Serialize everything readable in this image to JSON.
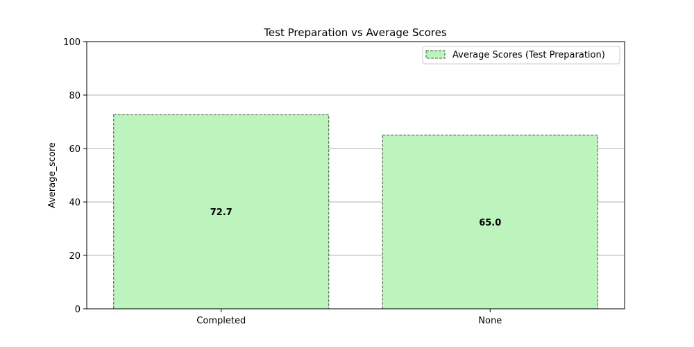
{
  "chart_data": {
    "type": "bar",
    "title": "Test Preparation vs Average Scores",
    "xlabel": "",
    "ylabel": "Average_score",
    "categories": [
      "Completed",
      "None"
    ],
    "series": [
      {
        "name": "Average Scores (Test Preparation)",
        "values": [
          72.7,
          65.0
        ],
        "value_labels": [
          "72.7",
          "65.0"
        ]
      }
    ],
    "ylim": [
      0,
      100
    ],
    "yticks": [
      0,
      20,
      40,
      60,
      80,
      100
    ],
    "ytick_labels": [
      "0",
      "20",
      "40",
      "60",
      "80",
      "100"
    ],
    "grid": "y-axis horizontal lines",
    "legend_position": "top-right",
    "colors": {
      "bar_fill": "#bdf3bd",
      "bar_edge": "#3a5a3a",
      "grid": "#b0b0b0",
      "axes": "#000000"
    }
  }
}
